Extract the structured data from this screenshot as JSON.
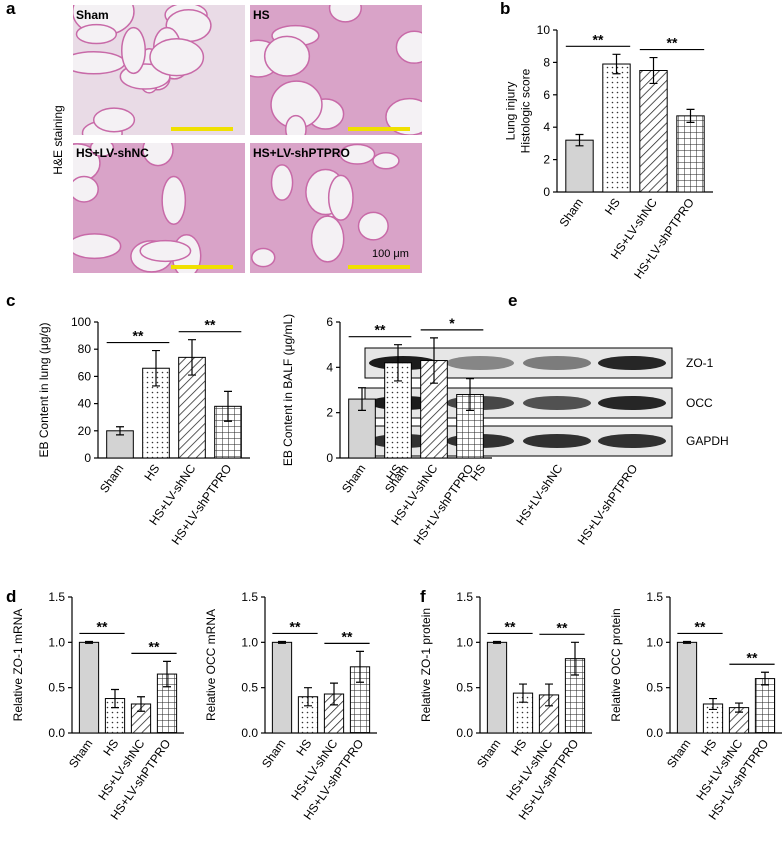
{
  "panel_a": {
    "label": "a",
    "side_label": "H&E staining",
    "images": [
      "Sham",
      "HS",
      "HS+LV-shNC",
      "HS+LV-shPTPRO"
    ],
    "scale_bar": "100 μm"
  },
  "panel_e": {
    "label": "e",
    "bands": [
      "ZO-1",
      "OCC",
      "GAPDH"
    ],
    "lanes": [
      "Sham",
      "HS",
      "HS+LV-shNC",
      "HS+LV-shPTPRO"
    ]
  },
  "chart_data": [
    {
      "type": "bar",
      "panel_label": "b",
      "ylabel": [
        "Lung injury",
        "Histologic score"
      ],
      "categories": [
        "Sham",
        "HS",
        "HS+LV-shNC",
        "HS+LV-shPTPRO"
      ],
      "values": [
        3.2,
        7.9,
        7.5,
        4.7
      ],
      "errors": [
        0.35,
        0.6,
        0.8,
        0.4
      ],
      "ylim": [
        0,
        10
      ],
      "yticks": [
        0,
        2,
        4,
        6,
        8,
        10
      ],
      "significance": [
        "**",
        "**"
      ]
    },
    {
      "type": "bar",
      "panel_label": "c",
      "ylabel": "EB Content in lung (μg/g)",
      "categories": [
        "Sham",
        "HS",
        "HS+LV-shNC",
        "HS+LV-shPTPRO"
      ],
      "values": [
        20,
        66,
        74,
        38
      ],
      "errors": [
        3,
        13,
        13,
        11
      ],
      "ylim": [
        0,
        100
      ],
      "yticks": [
        0,
        20,
        40,
        60,
        80,
        100
      ],
      "significance": [
        "**",
        "**"
      ]
    },
    {
      "type": "bar",
      "ylabel": "EB Content in BALF (μg/mL)",
      "categories": [
        "Sham",
        "HS",
        "HS+LV-shNC",
        "HS+LV-shPTPRO"
      ],
      "values": [
        2.6,
        4.2,
        4.3,
        2.8
      ],
      "errors": [
        0.5,
        0.8,
        1.0,
        0.7
      ],
      "ylim": [
        0,
        6
      ],
      "yticks": [
        0,
        2,
        4,
        6
      ],
      "significance": [
        "**",
        "*"
      ]
    },
    {
      "type": "bar",
      "panel_label": "d",
      "ylabel": "Relative ZO-1 mRNA",
      "categories": [
        "Sham",
        "HS",
        "HS+LV-shNC",
        "HS+LV-shPTPRO"
      ],
      "values": [
        1.0,
        0.38,
        0.32,
        0.65
      ],
      "errors": [
        0.01,
        0.1,
        0.08,
        0.14
      ],
      "ylim": [
        0,
        1.5
      ],
      "yticks": [
        {
          "value": 0,
          "label": "0.0"
        },
        0.5,
        {
          "value": 1,
          "label": "1.0"
        },
        1.5
      ],
      "significance": [
        "**",
        "**"
      ]
    },
    {
      "type": "bar",
      "ylabel": "Relative OCC mRNA",
      "categories": [
        "Sham",
        "HS",
        "HS+LV-shNC",
        "HS+LV-shPTPRO"
      ],
      "values": [
        1.0,
        0.4,
        0.43,
        0.73
      ],
      "errors": [
        0.01,
        0.1,
        0.12,
        0.17
      ],
      "ylim": [
        0,
        1.5
      ],
      "yticks": [
        {
          "value": 0,
          "label": "0.0"
        },
        0.5,
        {
          "value": 1,
          "label": "1.0"
        },
        1.5
      ],
      "significance": [
        "**",
        "**"
      ]
    },
    {
      "type": "bar",
      "panel_label": "f",
      "ylabel": "Relative ZO-1 protein",
      "categories": [
        "Sham",
        "HS",
        "HS+LV-shNC",
        "HS+LV-shPTPRO"
      ],
      "values": [
        1.0,
        0.44,
        0.42,
        0.82
      ],
      "errors": [
        0.01,
        0.1,
        0.12,
        0.18
      ],
      "ylim": [
        0,
        1.5
      ],
      "yticks": [
        {
          "value": 0,
          "label": "0.0"
        },
        0.5,
        {
          "value": 1,
          "label": "1.0"
        },
        1.5
      ],
      "significance": [
        "**",
        "**"
      ]
    },
    {
      "type": "bar",
      "ylabel": "Relative OCC protein",
      "categories": [
        "Sham",
        "HS",
        "HS+LV-shNC",
        "HS+LV-shPTPRO"
      ],
      "values": [
        1.0,
        0.32,
        0.28,
        0.6
      ],
      "errors": [
        0.01,
        0.06,
        0.05,
        0.07
      ],
      "ylim": [
        0,
        1.5
      ],
      "yticks": [
        {
          "value": 0,
          "label": "0.0"
        },
        0.5,
        {
          "value": 1,
          "label": "1.0"
        },
        1.5
      ],
      "significance": [
        "**",
        "**"
      ]
    }
  ]
}
